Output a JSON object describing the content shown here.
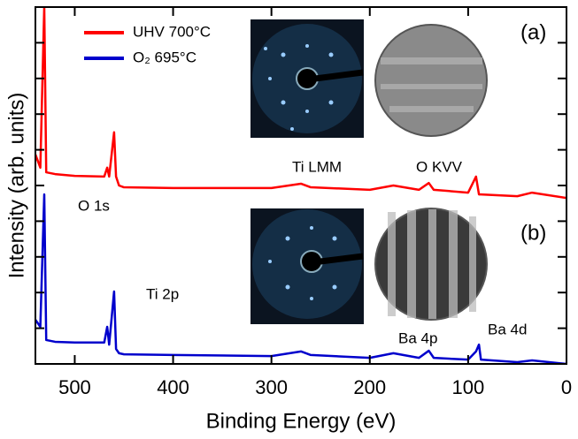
{
  "chart_data": {
    "type": "line",
    "xlabel": "Binding Energy (eV)",
    "ylabel": "Intensity (arb. units)",
    "xlim": [
      540,
      0
    ],
    "xticks": [
      500,
      400,
      300,
      200,
      100,
      0
    ],
    "ylim": [
      0,
      10
    ],
    "yticks": [
      0,
      1,
      2,
      3,
      4,
      5,
      6,
      7,
      8,
      9,
      10
    ],
    "annotations": [
      "Ti LMM",
      "O KVV",
      "O 1s",
      "Ti 2p",
      "Ba 4p",
      "Ba 4d",
      "(a)",
      "(b)"
    ],
    "x": [
      540,
      535,
      531,
      529,
      520,
      500,
      470,
      467,
      465,
      460,
      458,
      455,
      450,
      400,
      300,
      270,
      260,
      200,
      176,
      150,
      140,
      135,
      100,
      92,
      89,
      87,
      50,
      35,
      0
    ],
    "series": [
      {
        "name": "UHV 700°C",
        "color": "#ff0000",
        "values": [
          5.87,
          5.5,
          10,
          5.37,
          5.32,
          5.27,
          5.25,
          5.5,
          5.25,
          6.49,
          5.25,
          5.0,
          4.95,
          4.93,
          4.93,
          5.05,
          4.95,
          4.88,
          5.0,
          4.88,
          5.07,
          4.88,
          4.8,
          5.25,
          4.75,
          4.75,
          4.7,
          4.8,
          4.65
        ]
      },
      {
        "name": "O₂ 695°C",
        "color": "#0000cc",
        "values": [
          1.24,
          1.04,
          4.75,
          0.67,
          0.62,
          0.6,
          0.6,
          1.04,
          0.54,
          2.03,
          0.42,
          0.3,
          0.27,
          0.25,
          0.22,
          0.35,
          0.25,
          0.17,
          0.3,
          0.17,
          0.37,
          0.17,
          0.12,
          0.35,
          0.54,
          0.12,
          0.05,
          0.1,
          0
        ]
      }
    ]
  }
}
